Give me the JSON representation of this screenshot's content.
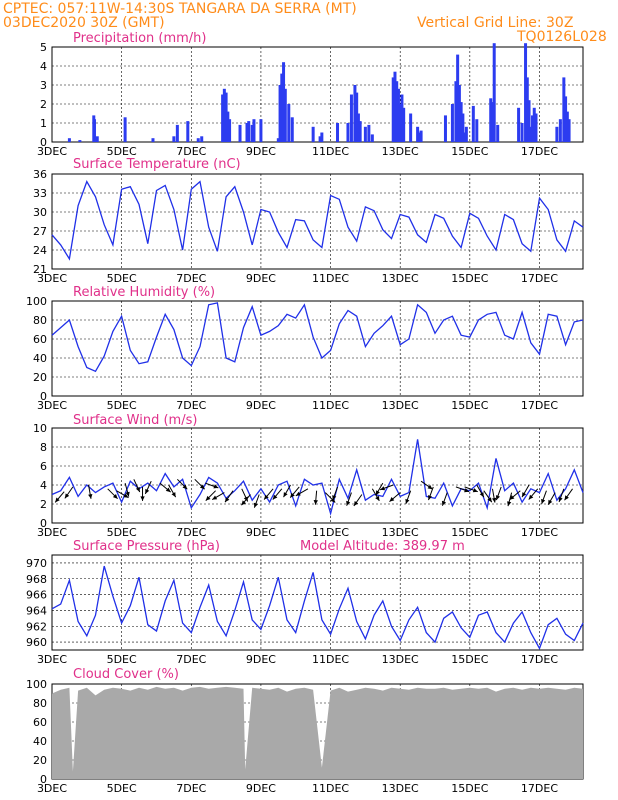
{
  "header": {
    "line1_left": "CPTEC:   057:11W-14:30S   TANGARA DA SERRA (MT)",
    "line2_left": "03DEC2020 30Z (GMT)",
    "line2_right": "Vertical Grid Line: 30Z",
    "line3_right": "TQ0126L028"
  },
  "colors": {
    "header": "#ff8c1a",
    "title": "#e0308a",
    "series": "#2030e8",
    "precip": "#2c3cf0",
    "cloud": "#a9a9a9",
    "arrow": "#000000"
  },
  "x_axis": {
    "ticks": [
      "3DEC",
      "5DEC",
      "7DEC",
      "9DEC",
      "11DEC",
      "13DEC",
      "15DEC",
      "17DEC"
    ],
    "tick_days": [
      3,
      5,
      7,
      9,
      11,
      13,
      15,
      17
    ],
    "start_day": 3,
    "end_day": 18.25
  },
  "chart_data": [
    {
      "type": "bar",
      "title": "Precipitation (mm/h)",
      "ylim": [
        0,
        5
      ],
      "yticks": [
        0,
        1,
        2,
        3,
        4,
        5
      ],
      "x": [
        3.5,
        3.8,
        4.2,
        4.22,
        4.3,
        5.1,
        5.9,
        6.5,
        6.6,
        6.9,
        7.2,
        7.3,
        7.9,
        7.95,
        8.0,
        8.05,
        8.1,
        8.4,
        8.6,
        8.65,
        8.75,
        8.8,
        9.0,
        9.5,
        9.55,
        9.6,
        9.65,
        9.7,
        9.8,
        9.9,
        10.5,
        10.7,
        10.75,
        11.2,
        11.5,
        11.6,
        11.7,
        11.75,
        11.8,
        11.85,
        12.0,
        12.1,
        12.2,
        12.8,
        12.85,
        12.9,
        12.95,
        13.0,
        13.05,
        13.1,
        13.3,
        13.5,
        13.55,
        13.6,
        14.3,
        14.5,
        14.6,
        14.65,
        14.7,
        14.75,
        14.8,
        14.85,
        14.9,
        15.1,
        15.2,
        15.6,
        15.65,
        15.7,
        15.8,
        16.4,
        16.5,
        16.6,
        16.65,
        16.7,
        16.75,
        16.8,
        16.85,
        16.9,
        17.5,
        17.6,
        17.7,
        17.75,
        17.8,
        17.85
      ],
      "values": [
        0.2,
        0.1,
        1.4,
        1.2,
        0.3,
        1.3,
        0.2,
        0.3,
        0.9,
        1.1,
        0.2,
        0.3,
        2.5,
        2.8,
        2.6,
        1.6,
        1.2,
        0.9,
        1.0,
        1.1,
        0.9,
        1.2,
        1.2,
        0.2,
        3.0,
        3.6,
        4.2,
        2.8,
        2.0,
        1.3,
        0.8,
        0.3,
        0.5,
        1.0,
        1.0,
        2.5,
        3.0,
        2.6,
        1.5,
        1.1,
        0.8,
        0.9,
        0.4,
        3.4,
        3.7,
        3.2,
        2.8,
        2.0,
        2.5,
        1.8,
        1.5,
        0.8,
        0.5,
        0.6,
        1.4,
        2.0,
        3.2,
        4.6,
        3.0,
        2.1,
        1.5,
        0.5,
        0.8,
        1.9,
        1.2,
        2.3,
        2.1,
        5.2,
        0.9,
        1.8,
        1.0,
        5.2,
        3.4,
        2.2,
        0.8,
        1.4,
        1.8,
        1.5,
        0.8,
        1.2,
        3.4,
        2.4,
        1.6,
        1.2
      ]
    },
    {
      "type": "line",
      "title": "Surface Temperature (nC)",
      "ylim": [
        21,
        36
      ],
      "yticks": [
        21,
        24,
        27,
        30,
        33,
        36
      ],
      "x": [
        3.0,
        3.25,
        3.5,
        3.75,
        4.0,
        4.25,
        4.5,
        4.75,
        5.0,
        5.25,
        5.5,
        5.75,
        6.0,
        6.25,
        6.5,
        6.75,
        7.0,
        7.25,
        7.5,
        7.75,
        8.0,
        8.25,
        8.5,
        8.75,
        9.0,
        9.25,
        9.5,
        9.75,
        10.0,
        10.25,
        10.5,
        10.75,
        11.0,
        11.25,
        11.5,
        11.75,
        12.0,
        12.25,
        12.5,
        12.75,
        13.0,
        13.25,
        13.5,
        13.75,
        14.0,
        14.25,
        14.5,
        14.75,
        15.0,
        15.25,
        15.5,
        15.75,
        16.0,
        16.25,
        16.5,
        16.75,
        17.0,
        17.25,
        17.5,
        17.75,
        18.0,
        18.25
      ],
      "values": [
        26.4,
        24.8,
        22.6,
        31.0,
        34.8,
        32.4,
        28.0,
        24.8,
        33.6,
        34.0,
        31.2,
        25.0,
        33.4,
        34.2,
        30.4,
        24.0,
        33.6,
        34.8,
        27.6,
        23.8,
        32.4,
        34.0,
        30.0,
        24.8,
        30.4,
        30.0,
        26.8,
        24.4,
        28.8,
        28.6,
        25.6,
        24.4,
        32.6,
        32.0,
        27.6,
        25.4,
        30.8,
        30.2,
        27.2,
        25.8,
        29.6,
        29.2,
        26.4,
        25.2,
        29.6,
        29.0,
        26.2,
        24.4,
        29.8,
        29.0,
        26.2,
        24.0,
        29.6,
        28.8,
        25.0,
        23.8,
        32.2,
        30.4,
        25.6,
        23.8,
        28.6,
        27.6
      ]
    },
    {
      "type": "line",
      "title": "Relative Humidity (%)",
      "ylim": [
        0,
        100
      ],
      "yticks": [
        0,
        20,
        40,
        60,
        80,
        100
      ],
      "x": [
        3.0,
        3.25,
        3.5,
        3.75,
        4.0,
        4.25,
        4.5,
        4.75,
        5.0,
        5.25,
        5.5,
        5.75,
        6.0,
        6.25,
        6.5,
        6.75,
        7.0,
        7.25,
        7.5,
        7.75,
        8.0,
        8.25,
        8.5,
        8.75,
        9.0,
        9.25,
        9.5,
        9.75,
        10.0,
        10.25,
        10.5,
        10.75,
        11.0,
        11.25,
        11.5,
        11.75,
        12.0,
        12.25,
        12.5,
        12.75,
        13.0,
        13.25,
        13.5,
        13.75,
        14.0,
        14.25,
        14.5,
        14.75,
        15.0,
        15.25,
        15.5,
        15.75,
        16.0,
        16.25,
        16.5,
        16.75,
        17.0,
        17.25,
        17.5,
        17.75,
        18.0,
        18.25
      ],
      "values": [
        64,
        72,
        80,
        52,
        30,
        26,
        42,
        68,
        84,
        48,
        34,
        36,
        62,
        86,
        70,
        40,
        32,
        52,
        96,
        98,
        40,
        36,
        72,
        94,
        64,
        68,
        74,
        86,
        82,
        96,
        62,
        40,
        48,
        76,
        90,
        84,
        52,
        66,
        74,
        84,
        54,
        60,
        96,
        88,
        66,
        80,
        84,
        64,
        62,
        80,
        86,
        88,
        64,
        60,
        88,
        56,
        44,
        86,
        84,
        54,
        78,
        80
      ]
    },
    {
      "type": "line",
      "title": "Surface Wind (m/s)",
      "ylim": [
        0,
        10
      ],
      "yticks": [
        0,
        2,
        4,
        6,
        8,
        10
      ],
      "x": [
        3.0,
        3.25,
        3.5,
        3.75,
        4.0,
        4.25,
        4.5,
        4.75,
        5.0,
        5.25,
        5.5,
        5.75,
        6.0,
        6.25,
        6.5,
        6.75,
        7.0,
        7.25,
        7.5,
        7.75,
        8.0,
        8.25,
        8.5,
        8.75,
        9.0,
        9.25,
        9.5,
        9.75,
        10.0,
        10.25,
        10.5,
        10.75,
        11.0,
        11.25,
        11.5,
        11.75,
        12.0,
        12.25,
        12.5,
        12.75,
        13.0,
        13.25,
        13.5,
        13.75,
        14.0,
        14.25,
        14.5,
        14.75,
        15.0,
        15.25,
        15.5,
        15.75,
        16.0,
        16.25,
        16.5,
        16.75,
        17.0,
        17.25,
        17.5,
        17.75,
        18.0,
        18.25
      ],
      "values": [
        3.0,
        3.4,
        4.8,
        2.8,
        4.0,
        3.2,
        3.8,
        4.2,
        2.2,
        4.4,
        3.6,
        4.2,
        3.4,
        5.2,
        3.8,
        4.6,
        1.6,
        3.0,
        4.8,
        4.2,
        2.6,
        3.4,
        4.4,
        2.4,
        3.6,
        2.2,
        4.0,
        4.4,
        1.8,
        4.6,
        4.0,
        4.2,
        1.0,
        4.6,
        2.6,
        5.6,
        2.4,
        3.0,
        2.8,
        4.6,
        2.8,
        3.2,
        8.8,
        2.8,
        2.6,
        4.2,
        1.8,
        3.6,
        3.4,
        4.2,
        1.6,
        6.8,
        3.4,
        4.2,
        2.2,
        3.6,
        3.2,
        5.2,
        2.4,
        3.6,
        5.6,
        3.2
      ],
      "arrows_x": [
        3.35,
        3.6,
        4.05,
        4.6,
        4.85,
        5.1,
        5.35,
        5.6,
        5.85,
        6.1,
        6.35,
        6.6,
        7.1,
        7.4,
        7.7,
        7.95,
        8.2,
        8.45,
        8.7,
        8.95,
        9.35,
        9.6,
        9.85,
        10.1,
        10.35,
        10.6,
        10.85,
        11.2,
        11.6,
        11.9,
        12.2,
        12.5,
        12.8,
        13.0,
        13.3,
        13.6,
        13.95,
        14.35,
        14.6,
        14.85,
        15.2,
        15.4,
        15.65,
        15.9,
        16.2,
        16.45,
        16.7,
        16.95,
        17.2,
        17.45,
        17.7,
        17.95
      ],
      "arrows_speed": [
        3.3,
        3.8,
        4.0,
        3.6,
        3.4,
        4.2,
        4.6,
        3.8,
        4.4,
        4.2,
        4.0,
        4.6,
        4.6,
        4.2,
        3.4,
        3.2,
        3.4,
        3.6,
        3.0,
        3.0,
        3.6,
        3.6,
        4.0,
        3.8,
        3.6,
        3.4,
        3.2,
        3.8,
        3.2,
        3.0,
        3.6,
        4.2,
        4.0,
        3.2,
        3.4,
        4.4,
        3.8,
        3.2,
        3.8,
        3.8,
        4.0,
        3.4,
        3.6,
        3.8,
        3.2,
        3.4,
        4.0,
        3.6,
        3.4,
        3.2,
        3.6,
        3.6
      ],
      "arrows_dir_deg": [
        130,
        125,
        80,
        45,
        30,
        75,
        65,
        90,
        115,
        40,
        60,
        45,
        45,
        20,
        135,
        150,
        125,
        65,
        130,
        110,
        130,
        130,
        120,
        130,
        150,
        95,
        45,
        110,
        110,
        125,
        60,
        120,
        160,
        140,
        110,
        35,
        110,
        110,
        20,
        20,
        60,
        55,
        80,
        110,
        105,
        140,
        120,
        130,
        110,
        120,
        110,
        125
      ]
    },
    {
      "type": "line",
      "title": "Surface Pressure (hPa)",
      "annotation": "Model Altitude: 389.97 m",
      "ylim": [
        959,
        971
      ],
      "yticks": [
        960,
        962,
        964,
        966,
        968,
        970
      ],
      "x": [
        3.0,
        3.25,
        3.5,
        3.75,
        4.0,
        4.25,
        4.5,
        4.75,
        5.0,
        5.25,
        5.5,
        5.75,
        6.0,
        6.25,
        6.5,
        6.75,
        7.0,
        7.25,
        7.5,
        7.75,
        8.0,
        8.25,
        8.5,
        8.75,
        9.0,
        9.25,
        9.5,
        9.75,
        10.0,
        10.25,
        10.5,
        10.75,
        11.0,
        11.25,
        11.5,
        11.75,
        12.0,
        12.25,
        12.5,
        12.75,
        13.0,
        13.25,
        13.5,
        13.75,
        14.0,
        14.25,
        14.5,
        14.75,
        15.0,
        15.25,
        15.5,
        15.75,
        16.0,
        16.25,
        16.5,
        16.75,
        17.0,
        17.25,
        17.5,
        17.75,
        18.0,
        18.25
      ],
      "values": [
        964.2,
        964.8,
        967.8,
        962.6,
        960.8,
        963.4,
        969.6,
        965.8,
        962.4,
        964.6,
        968.2,
        962.2,
        961.4,
        965.2,
        967.8,
        962.4,
        961.2,
        964.4,
        967.2,
        962.6,
        960.8,
        964.0,
        967.6,
        962.8,
        961.6,
        964.6,
        968.2,
        962.8,
        961.2,
        965.2,
        968.8,
        962.8,
        961.0,
        964.2,
        966.8,
        962.6,
        960.4,
        963.4,
        965.2,
        962.0,
        960.2,
        962.8,
        964.4,
        961.2,
        960.0,
        963.0,
        963.8,
        961.8,
        960.6,
        963.4,
        963.8,
        961.2,
        960.0,
        962.4,
        963.8,
        961.2,
        959.2,
        962.2,
        963.0,
        961.0,
        960.2,
        962.4
      ]
    },
    {
      "type": "area",
      "title": "Cloud Cover (%)",
      "ylim": [
        0,
        100
      ],
      "yticks": [
        0,
        20,
        40,
        60,
        80,
        100
      ],
      "x": [
        3.0,
        3.25,
        3.5,
        3.6,
        3.75,
        4.0,
        4.25,
        4.5,
        4.75,
        5.0,
        5.25,
        5.5,
        5.75,
        6.0,
        6.25,
        6.5,
        6.75,
        7.0,
        7.25,
        7.5,
        7.75,
        8.0,
        8.25,
        8.5,
        8.55,
        8.75,
        9.0,
        9.25,
        9.5,
        9.75,
        10.0,
        10.25,
        10.5,
        10.75,
        11.0,
        11.25,
        11.5,
        11.75,
        12.0,
        12.25,
        12.5,
        12.75,
        13.0,
        13.25,
        13.5,
        13.75,
        14.0,
        14.25,
        14.5,
        14.75,
        15.0,
        15.25,
        15.5,
        15.75,
        16.0,
        16.25,
        16.5,
        16.75,
        17.0,
        17.25,
        17.5,
        17.75,
        18.0,
        18.25
      ],
      "values": [
        90,
        94,
        96,
        8,
        93,
        96,
        88,
        94,
        96,
        95,
        93,
        96,
        94,
        97,
        95,
        96,
        93,
        96,
        97,
        95,
        96,
        97,
        96,
        95,
        10,
        96,
        95,
        94,
        96,
        92,
        95,
        96,
        94,
        12,
        93,
        96,
        92,
        94,
        96,
        95,
        93,
        96,
        95,
        94,
        96,
        95,
        95,
        96,
        94,
        95,
        96,
        95,
        96,
        92,
        95,
        96,
        94,
        96,
        95,
        96,
        95,
        94,
        96,
        95
      ]
    }
  ]
}
